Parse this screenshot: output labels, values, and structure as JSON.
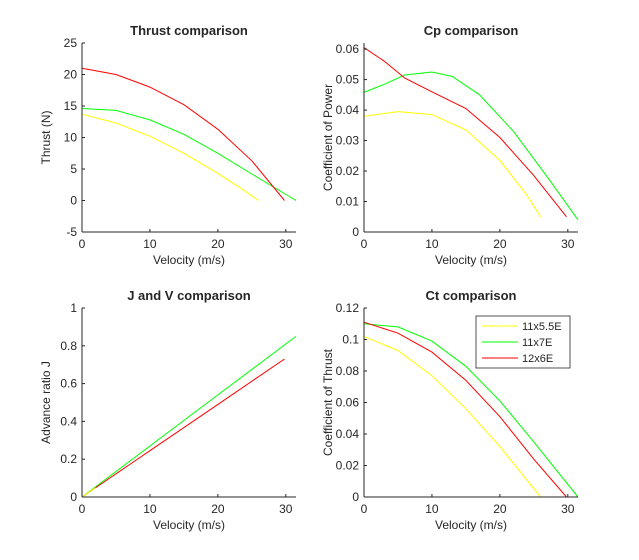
{
  "figure": {
    "background": "#ffffff",
    "axis_color": "#262626"
  },
  "chart_data": [
    {
      "id": "thrust",
      "type": "line",
      "title": "Thrust comparison",
      "xlabel": "Velocity (m/s)",
      "ylabel": "Thrust (N)",
      "xlim": [
        0,
        31.5
      ],
      "ylim": [
        -5,
        25
      ],
      "xticks": [
        0,
        10,
        20,
        30
      ],
      "yticks": [
        -5,
        0,
        5,
        10,
        15,
        20,
        25
      ],
      "grid": false,
      "series": [
        {
          "color": "#ffff00",
          "x": [
            0,
            5,
            10,
            15,
            20,
            23,
            26
          ],
          "y": [
            13.7,
            12.3,
            10.2,
            7.5,
            4.3,
            2.2,
            0
          ]
        },
        {
          "color": "#00ff00",
          "x": [
            0,
            5,
            10,
            15,
            20,
            25,
            31.5
          ],
          "y": [
            14.6,
            14.3,
            12.8,
            10.5,
            7.5,
            4.2,
            0
          ]
        },
        {
          "color": "#ff0000",
          "x": [
            0,
            5,
            10,
            15,
            20,
            25,
            29.8
          ],
          "y": [
            21,
            20,
            18,
            15.2,
            11.3,
            6.3,
            0
          ]
        }
      ]
    },
    {
      "id": "cp",
      "type": "line",
      "title": "Cp comparison",
      "xlabel": "Velocity (m/s)",
      "ylabel": "Coefficient of Power",
      "xlim": [
        0,
        31.5
      ],
      "ylim": [
        0,
        0.062
      ],
      "xticks": [
        0,
        10,
        20,
        30
      ],
      "yticks": [
        0,
        0.01,
        0.02,
        0.03,
        0.04,
        0.05,
        0.06
      ],
      "ytick_labels": [
        "0",
        "0.01",
        "0.02",
        "0.03",
        "0.04",
        "0.05",
        "0.06"
      ],
      "grid": false,
      "series": [
        {
          "color": "#ffff00",
          "x": [
            0,
            5,
            10,
            15,
            20,
            24,
            26
          ],
          "y": [
            0.038,
            0.0395,
            0.0385,
            0.0335,
            0.0235,
            0.012,
            0.005
          ]
        },
        {
          "color": "#00ff00",
          "x": [
            0,
            3,
            6,
            10,
            13,
            17,
            22,
            27,
            31.5
          ],
          "y": [
            0.0458,
            0.0485,
            0.0515,
            0.0525,
            0.051,
            0.045,
            0.033,
            0.018,
            0.004
          ]
        },
        {
          "color": "#ff0000",
          "x": [
            0,
            3,
            6,
            10,
            15,
            20,
            25,
            29.8
          ],
          "y": [
            0.0605,
            0.056,
            0.0505,
            0.046,
            0.0405,
            0.031,
            0.0185,
            0.005
          ]
        }
      ]
    },
    {
      "id": "jv",
      "type": "line",
      "title": "J and V comparison",
      "xlabel": "Velocity (m/s)",
      "ylabel": "Advance ratio J",
      "xlim": [
        0,
        31.5
      ],
      "ylim": [
        0,
        1
      ],
      "xticks": [
        0,
        10,
        20,
        30
      ],
      "yticks": [
        0,
        0.2,
        0.4,
        0.6,
        0.8,
        1
      ],
      "ytick_labels": [
        "0",
        "0.2",
        "0.4",
        "0.6",
        "0.8",
        "1"
      ],
      "grid": false,
      "series": [
        {
          "color": "#00ff00",
          "x": [
            0,
            10,
            20,
            31.5
          ],
          "y": [
            0,
            0.27,
            0.54,
            0.85
          ]
        },
        {
          "color": "#ff0000",
          "x": [
            0,
            10,
            20,
            29.8
          ],
          "y": [
            0,
            0.245,
            0.49,
            0.73
          ]
        },
        {
          "color": "#ffff00",
          "x": [
            0,
            2
          ],
          "y": [
            0,
            0.05
          ]
        }
      ]
    },
    {
      "id": "ct",
      "type": "line",
      "title": "Ct comparison",
      "xlabel": "Velocity (m/s)",
      "ylabel": "Coefficient of Thrust",
      "xlim": [
        0,
        31.5
      ],
      "ylim": [
        0,
        0.12
      ],
      "xticks": [
        0,
        10,
        20,
        30
      ],
      "yticks": [
        0,
        0.02,
        0.04,
        0.06,
        0.08,
        0.1,
        0.12
      ],
      "ytick_labels": [
        "0",
        "0.02",
        "0.04",
        "0.06",
        "0.08",
        "0.1",
        "0.12"
      ],
      "grid": false,
      "legend": {
        "placement": "top-right",
        "entries": [
          "11x5.5E",
          "11x7E",
          "12x6E"
        ]
      },
      "series": [
        {
          "name": "11x5.5E",
          "color": "#ffff00",
          "x": [
            0,
            5,
            10,
            15,
            20,
            23,
            26
          ],
          "y": [
            0.102,
            0.093,
            0.077,
            0.056,
            0.032,
            0.016,
            0
          ]
        },
        {
          "name": "11x7E",
          "color": "#00ff00",
          "x": [
            0,
            5,
            10,
            15,
            20,
            25,
            31.5
          ],
          "y": [
            0.11,
            0.108,
            0.099,
            0.083,
            0.061,
            0.035,
            0
          ]
        },
        {
          "name": "12x6E",
          "color": "#ff0000",
          "x": [
            0,
            5,
            10,
            15,
            20,
            25,
            29.8
          ],
          "y": [
            0.111,
            0.104,
            0.092,
            0.074,
            0.051,
            0.024,
            0
          ]
        }
      ]
    }
  ]
}
